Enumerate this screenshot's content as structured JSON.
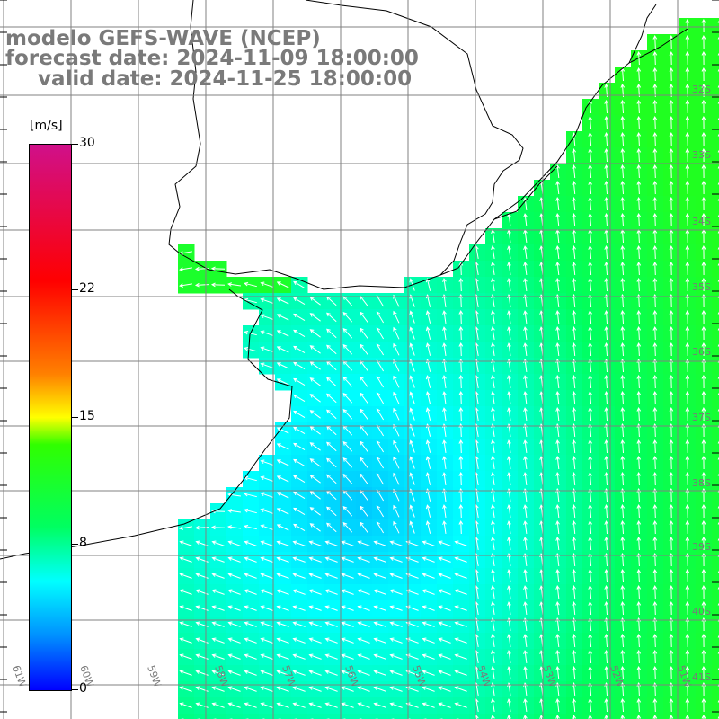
{
  "header": {
    "line1": "modelo GEFS-WAVE (NCEP)",
    "line2": "forecast date: 2024-11-09 18:00:00",
    "line3": "valid date: 2024-11-25 18:00:00"
  },
  "colorbar": {
    "unit": "[m/s]",
    "ticks": [
      {
        "label": "30",
        "value": 30
      },
      {
        "label": "22",
        "value": 22
      },
      {
        "label": "15",
        "value": 15
      },
      {
        "label": "8",
        "value": 8
      },
      {
        "label": "0",
        "value": 0
      }
    ],
    "min": 0,
    "max": 30,
    "colors": [
      "#0000ff",
      "#0090ff",
      "#00ffff",
      "#00ff60",
      "#30ff00",
      "#ffff00",
      "#ff8000",
      "#ff0000",
      "#d0108a"
    ]
  },
  "map": {
    "lat_labels": [
      "32S",
      "33S",
      "34S",
      "35S",
      "36S",
      "37S",
      "38S",
      "39S",
      "40S",
      "41S"
    ],
    "lon_labels": [
      "61W",
      "60W",
      "59W",
      "58W",
      "57W",
      "56W",
      "55W",
      "54W",
      "53W",
      "52W",
      "51W"
    ],
    "field_range_ms": [
      3,
      12
    ],
    "land_color": "#ffffff",
    "grid_color": "#808080",
    "arrow_color": "#ffffff"
  }
}
